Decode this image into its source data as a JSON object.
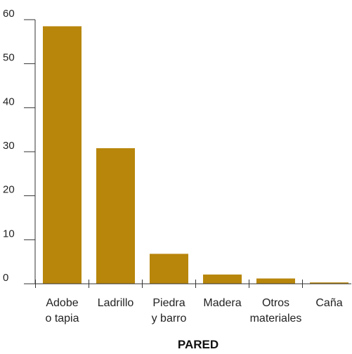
{
  "chart_data": {
    "type": "bar",
    "categories": [
      [
        "Adobe",
        "o tapia"
      ],
      [
        "Ladrillo"
      ],
      [
        "Piedra",
        "y barro"
      ],
      [
        "Madera"
      ],
      [
        "Otros",
        "materiales"
      ],
      [
        "Caña"
      ]
    ],
    "values": [
      58.5,
      30.8,
      6.8,
      2.1,
      1.2,
      0.3
    ],
    "xlabel": "PARED",
    "ylabel": "",
    "ylim": [
      0,
      60
    ],
    "yticks": [
      0,
      10,
      20,
      30,
      40,
      50,
      60
    ],
    "grid": false,
    "colors": {
      "bar": "#b8860b",
      "axis": "#333333"
    }
  }
}
